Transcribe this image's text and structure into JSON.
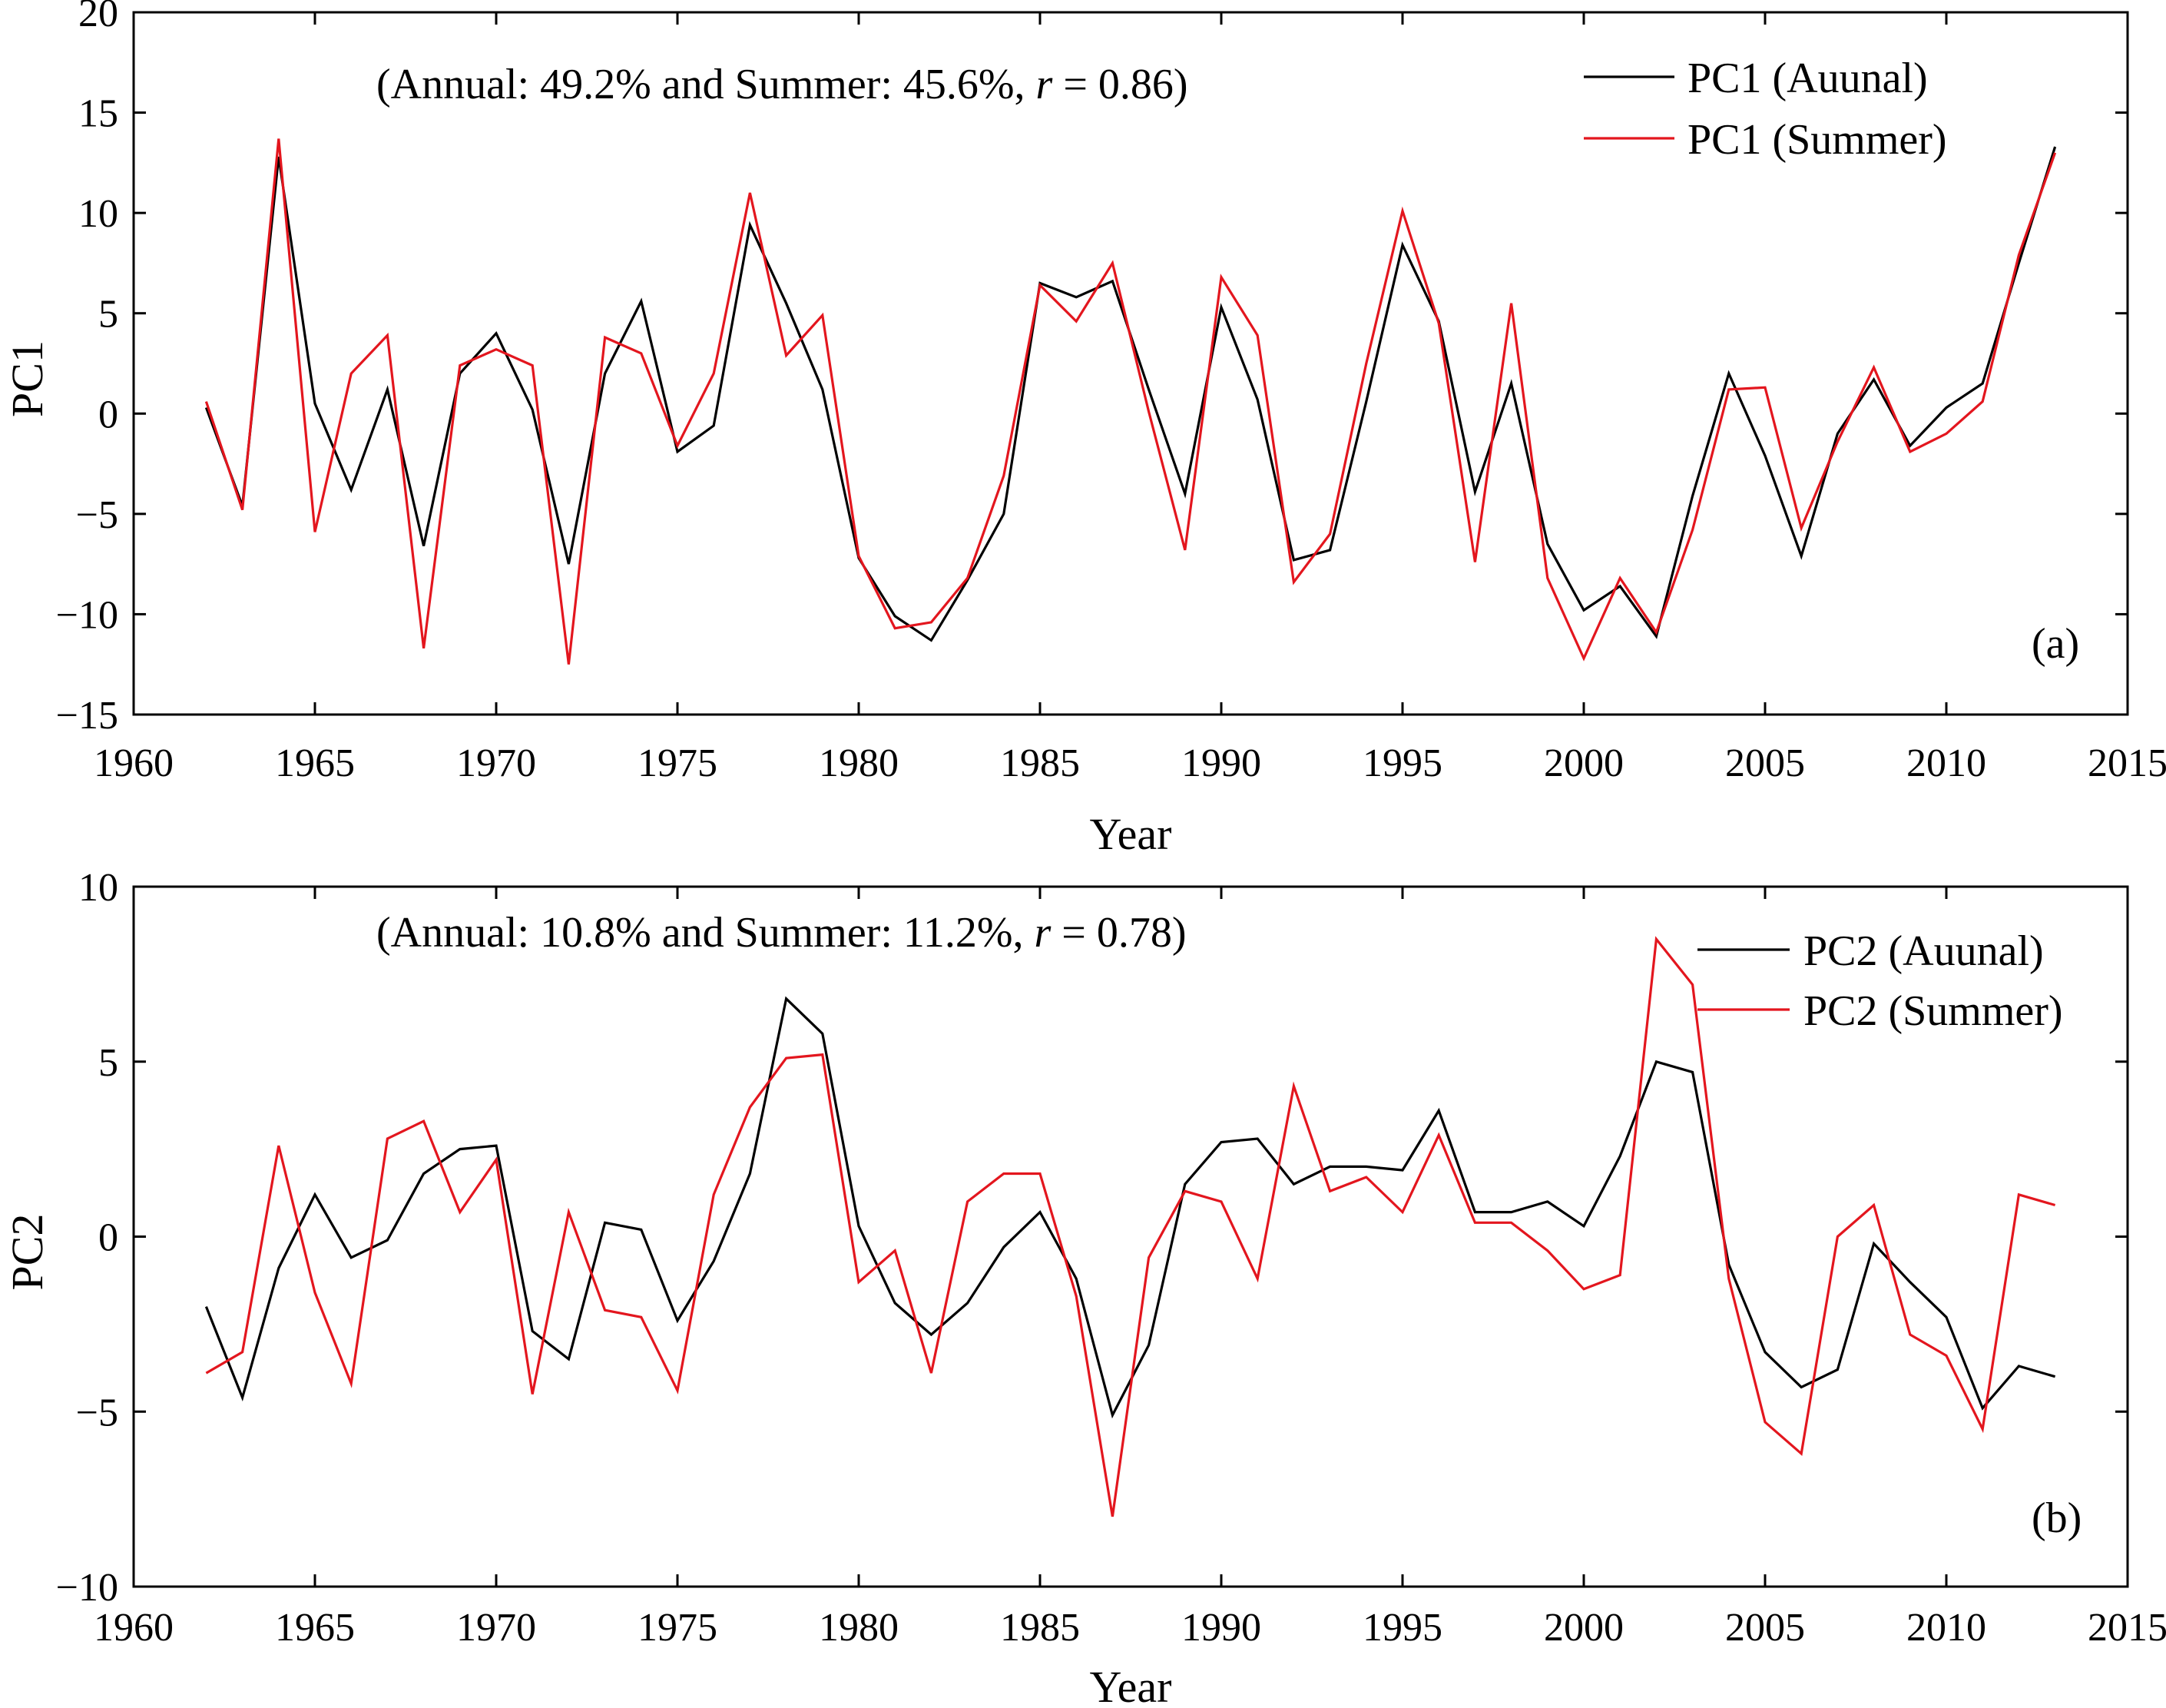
{
  "chart_data": [
    {
      "type": "line",
      "panel": "(a)",
      "annotation": {
        "pre": "(Annual: 49.2% and Summer: 45.6%, ",
        "r": "r",
        "post": " = 0.86)"
      },
      "xlabel": "Year",
      "ylabel": "PC1",
      "xlim": [
        1960,
        2015
      ],
      "ylim": [
        -15,
        20
      ],
      "xticks": [
        1960,
        1965,
        1970,
        1975,
        1980,
        1985,
        1990,
        1995,
        2000,
        2005,
        2010,
        2015
      ],
      "yticks": [
        -15,
        -10,
        -5,
        0,
        5,
        10,
        15,
        20
      ],
      "ytick_labels": [
        "−15",
        "−10",
        "−5",
        "0",
        "5",
        "10",
        "15",
        "20"
      ],
      "grid": false,
      "legend_position": "top-right",
      "x": [
        1962,
        1963,
        1964,
        1965,
        1966,
        1967,
        1968,
        1969,
        1970,
        1971,
        1972,
        1973,
        1974,
        1975,
        1976,
        1977,
        1978,
        1979,
        1980,
        1981,
        1982,
        1983,
        1984,
        1985,
        1986,
        1987,
        1988,
        1989,
        1990,
        1991,
        1992,
        1993,
        1994,
        1995,
        1996,
        1997,
        1998,
        1999,
        2000,
        2001,
        2002,
        2003,
        2004,
        2005,
        2006,
        2007,
        2008,
        2009,
        2010,
        2011,
        2012,
        2013
      ],
      "series": [
        {
          "name": "PC1 (Auunal)",
          "color": "#000000",
          "values": [
            0.3,
            -4.6,
            12.8,
            0.5,
            -3.8,
            1.2,
            -6.6,
            2.0,
            4.0,
            0.2,
            -7.5,
            2.0,
            5.6,
            -1.9,
            -0.6,
            9.4,
            5.5,
            1.2,
            -7.2,
            -10.1,
            -11.3,
            -8.3,
            -5.0,
            6.5,
            5.8,
            6.6,
            1.2,
            -4.0,
            5.3,
            0.7,
            -7.3,
            -6.8,
            0.6,
            8.4,
            4.6,
            -3.9,
            1.5,
            -6.5,
            -9.8,
            -8.6,
            -11.1,
            -4.1,
            2.0,
            -2.1,
            -7.1,
            -1.0,
            1.7,
            -1.6,
            0.3,
            1.5,
            7.5,
            13.3
          ]
        },
        {
          "name": "PC1 (Summer)",
          "color": "#e3161e",
          "values": [
            0.6,
            -4.8,
            13.7,
            -5.9,
            2.0,
            3.9,
            -11.7,
            2.4,
            3.2,
            2.4,
            -12.5,
            3.8,
            3.0,
            -1.6,
            2.0,
            11.0,
            2.9,
            4.9,
            -7.1,
            -10.7,
            -10.4,
            -8.2,
            -3.1,
            6.4,
            4.6,
            7.5,
            0.1,
            -6.8,
            6.8,
            3.9,
            -8.4,
            -6.0,
            2.5,
            10.1,
            4.5,
            -7.4,
            5.5,
            -8.2,
            -12.2,
            -8.2,
            -10.9,
            -5.8,
            1.2,
            1.3,
            -5.7,
            -1.4,
            2.3,
            -1.9,
            -1.0,
            0.6,
            7.9,
            13.0
          ]
        }
      ]
    },
    {
      "type": "line",
      "panel": "(b)",
      "annotation": {
        "pre": "(Annual: 10.8% and Summer: 11.2%, ",
        "r": "r",
        "post": " = 0.78)"
      },
      "xlabel": "Year",
      "ylabel": "PC2",
      "xlim": [
        1960,
        2015
      ],
      "ylim": [
        -10,
        10
      ],
      "xticks": [
        1960,
        1965,
        1970,
        1975,
        1980,
        1985,
        1990,
        1995,
        2000,
        2005,
        2010,
        2015
      ],
      "yticks": [
        -10,
        -5,
        0,
        5,
        10
      ],
      "ytick_labels": [
        "−10",
        "−5",
        "0",
        "5",
        "10"
      ],
      "grid": false,
      "legend_position": "top-right",
      "x": [
        1962,
        1963,
        1964,
        1965,
        1966,
        1967,
        1968,
        1969,
        1970,
        1971,
        1972,
        1973,
        1974,
        1975,
        1976,
        1977,
        1978,
        1979,
        1980,
        1981,
        1982,
        1983,
        1984,
        1985,
        1986,
        1987,
        1988,
        1989,
        1990,
        1991,
        1992,
        1993,
        1994,
        1995,
        1996,
        1997,
        1998,
        1999,
        2000,
        2001,
        2002,
        2003,
        2004,
        2005,
        2006,
        2007,
        2008,
        2009,
        2010,
        2011,
        2012,
        2013
      ],
      "series": [
        {
          "name": "PC2 (Auunal)",
          "color": "#000000",
          "values": [
            -2.0,
            -4.6,
            -0.9,
            1.2,
            -0.6,
            -0.1,
            1.8,
            2.5,
            2.6,
            -2.7,
            -3.5,
            0.4,
            0.2,
            -2.4,
            -0.7,
            1.8,
            6.8,
            5.8,
            0.3,
            -1.9,
            -2.8,
            -1.9,
            -0.3,
            0.7,
            -1.2,
            -5.1,
            -3.1,
            1.5,
            2.7,
            2.8,
            1.5,
            2.0,
            2.0,
            1.9,
            3.6,
            0.7,
            0.7,
            1.0,
            0.3,
            2.3,
            5.0,
            4.7,
            -0.8,
            -3.3,
            -4.3,
            -3.8,
            -0.2,
            -1.3,
            -2.3,
            -4.9,
            -3.7,
            -4.0
          ]
        },
        {
          "name": "PC2 (Summer)",
          "color": "#e3161e",
          "values": [
            -3.9,
            -3.3,
            2.6,
            -1.6,
            -4.2,
            2.8,
            3.3,
            0.7,
            2.2,
            -4.5,
            0.7,
            -2.1,
            -2.3,
            -4.4,
            1.2,
            3.7,
            5.1,
            5.2,
            -1.3,
            -0.4,
            -3.9,
            1.0,
            1.8,
            1.8,
            -1.7,
            -8.0,
            -0.6,
            1.3,
            1.0,
            -1.2,
            4.3,
            1.3,
            1.7,
            0.7,
            2.9,
            0.4,
            0.4,
            -0.4,
            -1.5,
            -1.1,
            8.5,
            7.2,
            -1.2,
            -5.3,
            -6.2,
            0.0,
            0.9,
            -2.8,
            -3.4,
            -5.5,
            1.2,
            0.9
          ]
        }
      ]
    }
  ]
}
